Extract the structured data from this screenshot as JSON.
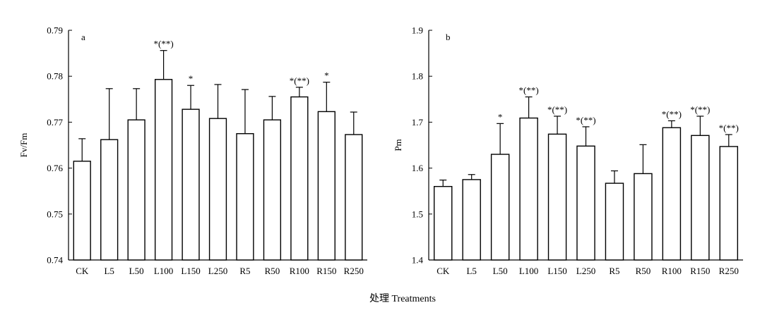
{
  "figure": {
    "shared_xlabel": "处理 Treatments"
  },
  "chart_data": [
    {
      "type": "bar",
      "panel_label": "a",
      "ylabel": "Fv/Fm",
      "xlabel": "",
      "ylim": [
        0.74,
        0.79
      ],
      "yticks": [
        "0.74",
        "0.75",
        "0.76",
        "0.77",
        "0.78",
        "0.79"
      ],
      "categories": [
        "CK",
        "L5",
        "L50",
        "L100",
        "L150",
        "L250",
        "R5",
        "R50",
        "R100",
        "R150",
        "R250"
      ],
      "values": [
        0.7615,
        0.7662,
        0.7705,
        0.7793,
        0.7728,
        0.7708,
        0.7675,
        0.7705,
        0.7755,
        0.7723,
        0.7673
      ],
      "error_upper": [
        0.7664,
        0.7773,
        0.7773,
        0.7856,
        0.778,
        0.7782,
        0.7771,
        0.7756,
        0.7776,
        0.7787,
        0.7722
      ],
      "significance": [
        "",
        "",
        "",
        "*(**)",
        "*",
        "",
        "",
        "",
        "*(**)",
        "*",
        ""
      ],
      "grid": false,
      "legend": "none"
    },
    {
      "type": "bar",
      "panel_label": "b",
      "ylabel": "Pm",
      "xlabel": "",
      "ylim": [
        1.4,
        1.9
      ],
      "yticks": [
        "1.4",
        "1.5",
        "1.6",
        "1.7",
        "1.8",
        "1.9"
      ],
      "categories": [
        "CK",
        "L5",
        "L50",
        "L100",
        "L150",
        "L250",
        "R5",
        "R50",
        "R100",
        "R150",
        "R250"
      ],
      "values": [
        1.56,
        1.575,
        1.63,
        1.709,
        1.674,
        1.648,
        1.567,
        1.588,
        1.688,
        1.671,
        1.647
      ],
      "error_upper": [
        1.574,
        1.586,
        1.697,
        1.755,
        1.713,
        1.69,
        1.594,
        1.651,
        1.703,
        1.713,
        1.673
      ],
      "significance": [
        "",
        "",
        "*",
        "*(**)",
        "*(**)",
        "*(**)",
        "",
        "",
        "*(**)",
        "*(**)",
        "*(**)"
      ],
      "grid": false,
      "legend": "none"
    }
  ]
}
